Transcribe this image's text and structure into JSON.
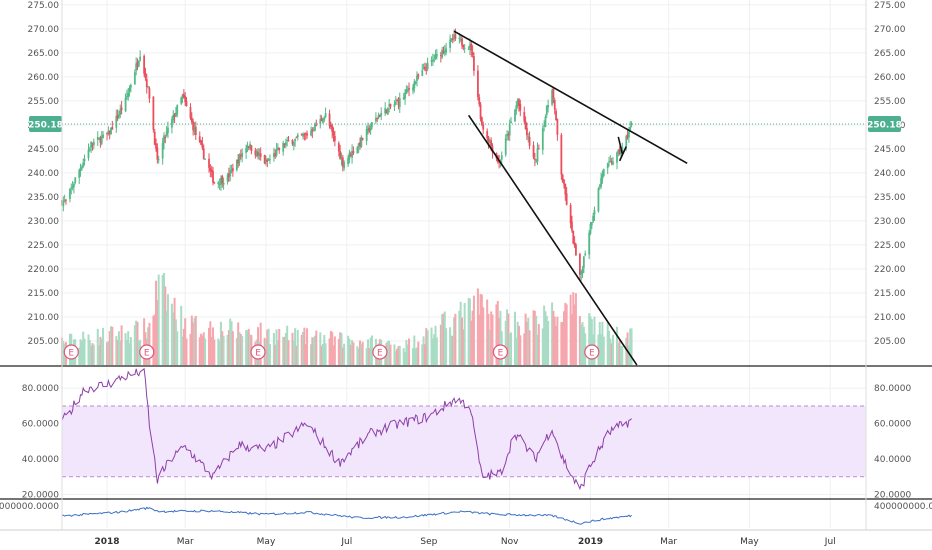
{
  "chart_data": [
    {
      "type": "candlestick",
      "pane": "price",
      "ylim": [
        200,
        276
      ],
      "y_ticks": [
        "205.00",
        "210.00",
        "215.00",
        "220.00",
        "225.00",
        "230.00",
        "235.00",
        "240.00",
        "245.00",
        "250.00",
        "255.00",
        "260.00",
        "265.00",
        "270.00",
        "275.00"
      ],
      "x_ticks": [
        {
          "label": "2018",
          "bold": true
        },
        {
          "label": "Mar",
          "bold": false
        },
        {
          "label": "May",
          "bold": false
        },
        {
          "label": "Jul",
          "bold": false
        },
        {
          "label": "Sep",
          "bold": false
        },
        {
          "label": "Nov",
          "bold": false
        },
        {
          "label": "2019",
          "bold": true
        },
        {
          "label": "Mar",
          "bold": false
        },
        {
          "label": "May",
          "bold": false
        },
        {
          "label": "Jul",
          "bold": false
        }
      ],
      "last_price": "250.18",
      "price_anchors": [
        [
          "2017-12-01",
          234
        ],
        [
          "2017-12-10",
          240
        ],
        [
          "2017-12-20",
          246
        ],
        [
          "2018-01-02",
          248
        ],
        [
          "2018-01-15",
          255
        ],
        [
          "2018-01-26",
          265
        ],
        [
          "2018-02-02",
          256
        ],
        [
          "2018-02-08",
          242
        ],
        [
          "2018-02-13",
          247
        ],
        [
          "2018-02-27",
          256
        ],
        [
          "2018-03-09",
          248
        ],
        [
          "2018-03-23",
          238
        ],
        [
          "2018-04-02",
          239
        ],
        [
          "2018-04-17",
          246
        ],
        [
          "2018-05-01",
          242
        ],
        [
          "2018-05-15",
          246
        ],
        [
          "2018-06-01",
          248
        ],
        [
          "2018-06-15",
          252
        ],
        [
          "2018-06-28",
          242
        ],
        [
          "2018-07-10",
          246
        ],
        [
          "2018-07-25",
          252
        ],
        [
          "2018-08-10",
          255
        ],
        [
          "2018-08-30",
          262
        ],
        [
          "2018-09-20",
          268
        ],
        [
          "2018-10-03",
          266
        ],
        [
          "2018-10-11",
          250
        ],
        [
          "2018-10-24",
          242
        ],
        [
          "2018-11-07",
          255
        ],
        [
          "2018-11-20",
          242
        ],
        [
          "2018-12-03",
          258
        ],
        [
          "2018-12-10",
          240
        ],
        [
          "2018-12-24",
          218
        ],
        [
          "2018-12-31",
          228
        ],
        [
          "2019-01-10",
          240
        ],
        [
          "2019-01-25",
          245
        ],
        [
          "2019-02-01",
          250
        ]
      ],
      "volume_anchors": [
        [
          "2017-12-01",
          0.3
        ],
        [
          "2018-02-01",
          0.45
        ],
        [
          "2018-02-09",
          1.0
        ],
        [
          "2018-03-01",
          0.5
        ],
        [
          "2018-04-01",
          0.45
        ],
        [
          "2018-06-01",
          0.35
        ],
        [
          "2018-08-15",
          0.25
        ],
        [
          "2018-10-10",
          0.75
        ],
        [
          "2018-11-10",
          0.5
        ],
        [
          "2018-12-20",
          0.7
        ],
        [
          "2019-01-15",
          0.4
        ],
        [
          "2019-02-01",
          0.35
        ]
      ],
      "earnings_markers": [
        "2017-12-05",
        "2018-01-31",
        "2018-04-25",
        "2018-07-26",
        "2018-10-25",
        "2019-01-02"
      ],
      "earnings_label": "E",
      "trendlines": [
        {
          "from": [
            "2018-09-20",
            269.5
          ],
          "to": [
            "2019-03-15",
            242
          ]
        },
        {
          "from": [
            "2018-10-01",
            252
          ],
          "to": [
            "2019-02-05",
            200
          ]
        },
        {
          "from": [
            "2019-01-22",
            247.5
          ],
          "to": [
            "2019-01-25",
            244
          ]
        },
        {
          "from": [
            "2019-01-23",
            242.5
          ],
          "to": [
            "2019-01-28",
            245.5
          ]
        }
      ],
      "colors": {
        "up": "#53b987",
        "down": "#eb4d5c",
        "up_volume": "#a9dcc4",
        "down_volume": "#f6a6ad",
        "last_price": "#4caf8f",
        "earnings": "#e0557a"
      }
    },
    {
      "type": "line",
      "pane": "rsi",
      "ylim": [
        18,
        92
      ],
      "y_ticks": [
        "20.0000",
        "40.0000",
        "60.0000",
        "80.0000"
      ],
      "band": [
        30,
        70
      ],
      "anchors": [
        [
          "2017-12-01",
          63
        ],
        [
          "2017-12-15",
          80
        ],
        [
          "2018-01-01",
          82
        ],
        [
          "2018-01-12",
          86
        ],
        [
          "2018-01-29",
          90
        ],
        [
          "2018-02-02",
          60
        ],
        [
          "2018-02-08",
          28
        ],
        [
          "2018-02-18",
          40
        ],
        [
          "2018-03-01",
          47
        ],
        [
          "2018-03-22",
          30
        ],
        [
          "2018-04-10",
          48
        ],
        [
          "2018-05-01",
          45
        ],
        [
          "2018-06-01",
          60
        ],
        [
          "2018-06-25",
          38
        ],
        [
          "2018-07-20",
          55
        ],
        [
          "2018-08-10",
          60
        ],
        [
          "2018-09-01",
          64
        ],
        [
          "2018-09-21",
          74
        ],
        [
          "2018-10-02",
          70
        ],
        [
          "2018-10-11",
          30
        ],
        [
          "2018-10-25",
          32
        ],
        [
          "2018-11-05",
          55
        ],
        [
          "2018-11-20",
          40
        ],
        [
          "2018-12-03",
          58
        ],
        [
          "2018-12-10",
          42
        ],
        [
          "2018-12-24",
          22
        ],
        [
          "2018-12-31",
          35
        ],
        [
          "2019-01-15",
          55
        ],
        [
          "2019-02-01",
          62
        ]
      ],
      "colors": {
        "line": "#8d3fa8",
        "band_fill": "#f2e6fd",
        "band_border": "#bb89cf"
      }
    },
    {
      "type": "line",
      "pane": "volume_indicator",
      "y_tick_label": "400000000.0000",
      "anchors": [
        [
          "2017-12-01",
          0.45
        ],
        [
          "2018-01-10",
          0.7
        ],
        [
          "2018-02-01",
          1.0
        ],
        [
          "2018-02-10",
          0.75
        ],
        [
          "2018-03-20",
          0.8
        ],
        [
          "2018-05-01",
          0.55
        ],
        [
          "2018-06-01",
          0.7
        ],
        [
          "2018-07-10",
          0.3
        ],
        [
          "2018-08-15",
          0.35
        ],
        [
          "2018-09-25",
          0.75
        ],
        [
          "2018-10-20",
          0.55
        ],
        [
          "2018-12-03",
          0.45
        ],
        [
          "2018-12-24",
          -0.1
        ],
        [
          "2019-01-10",
          0.2
        ],
        [
          "2019-02-01",
          0.45
        ]
      ],
      "colors": {
        "line": "#3c6fc4"
      }
    }
  ]
}
